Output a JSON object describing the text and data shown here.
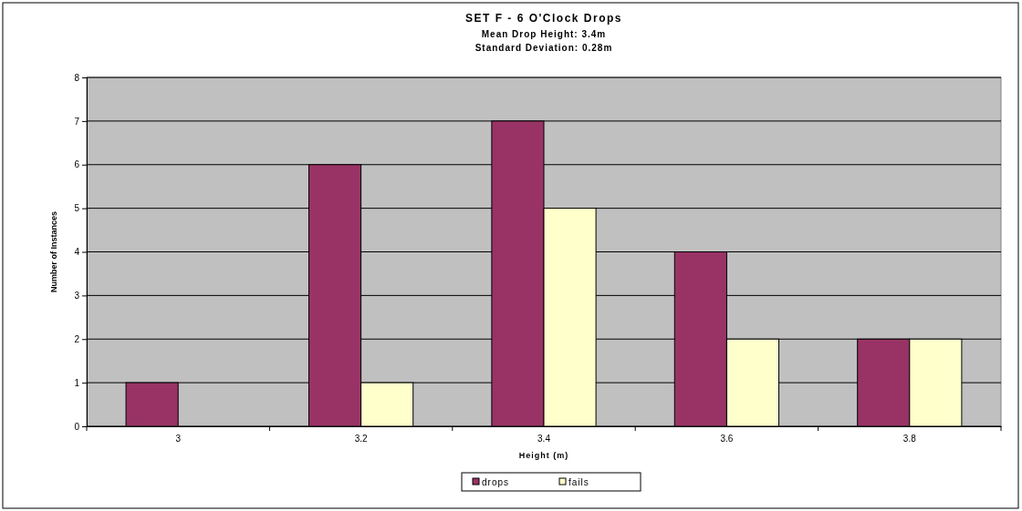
{
  "chart_data": {
    "type": "bar",
    "title": "SET F - 6 O'Clock Drops",
    "subtitle": "Mean Drop Height: 3.4m\nStandard Deviation: 0.28m",
    "xlabel": "Height (m)",
    "ylabel": "Number of Instances",
    "categories": [
      "3",
      "3.2",
      "3.4",
      "3.6",
      "3.8"
    ],
    "series": [
      {
        "name": "drops",
        "color": "#993366",
        "values": [
          1,
          6,
          7,
          4,
          2
        ]
      },
      {
        "name": "fails",
        "color": "#ffffcc",
        "values": [
          0,
          1,
          5,
          2,
          2
        ]
      }
    ],
    "ylim": [
      0,
      8
    ],
    "yticks": [
      0,
      1,
      2,
      3,
      4,
      5,
      6,
      7,
      8
    ],
    "grid": "y",
    "legend": "bottom"
  }
}
